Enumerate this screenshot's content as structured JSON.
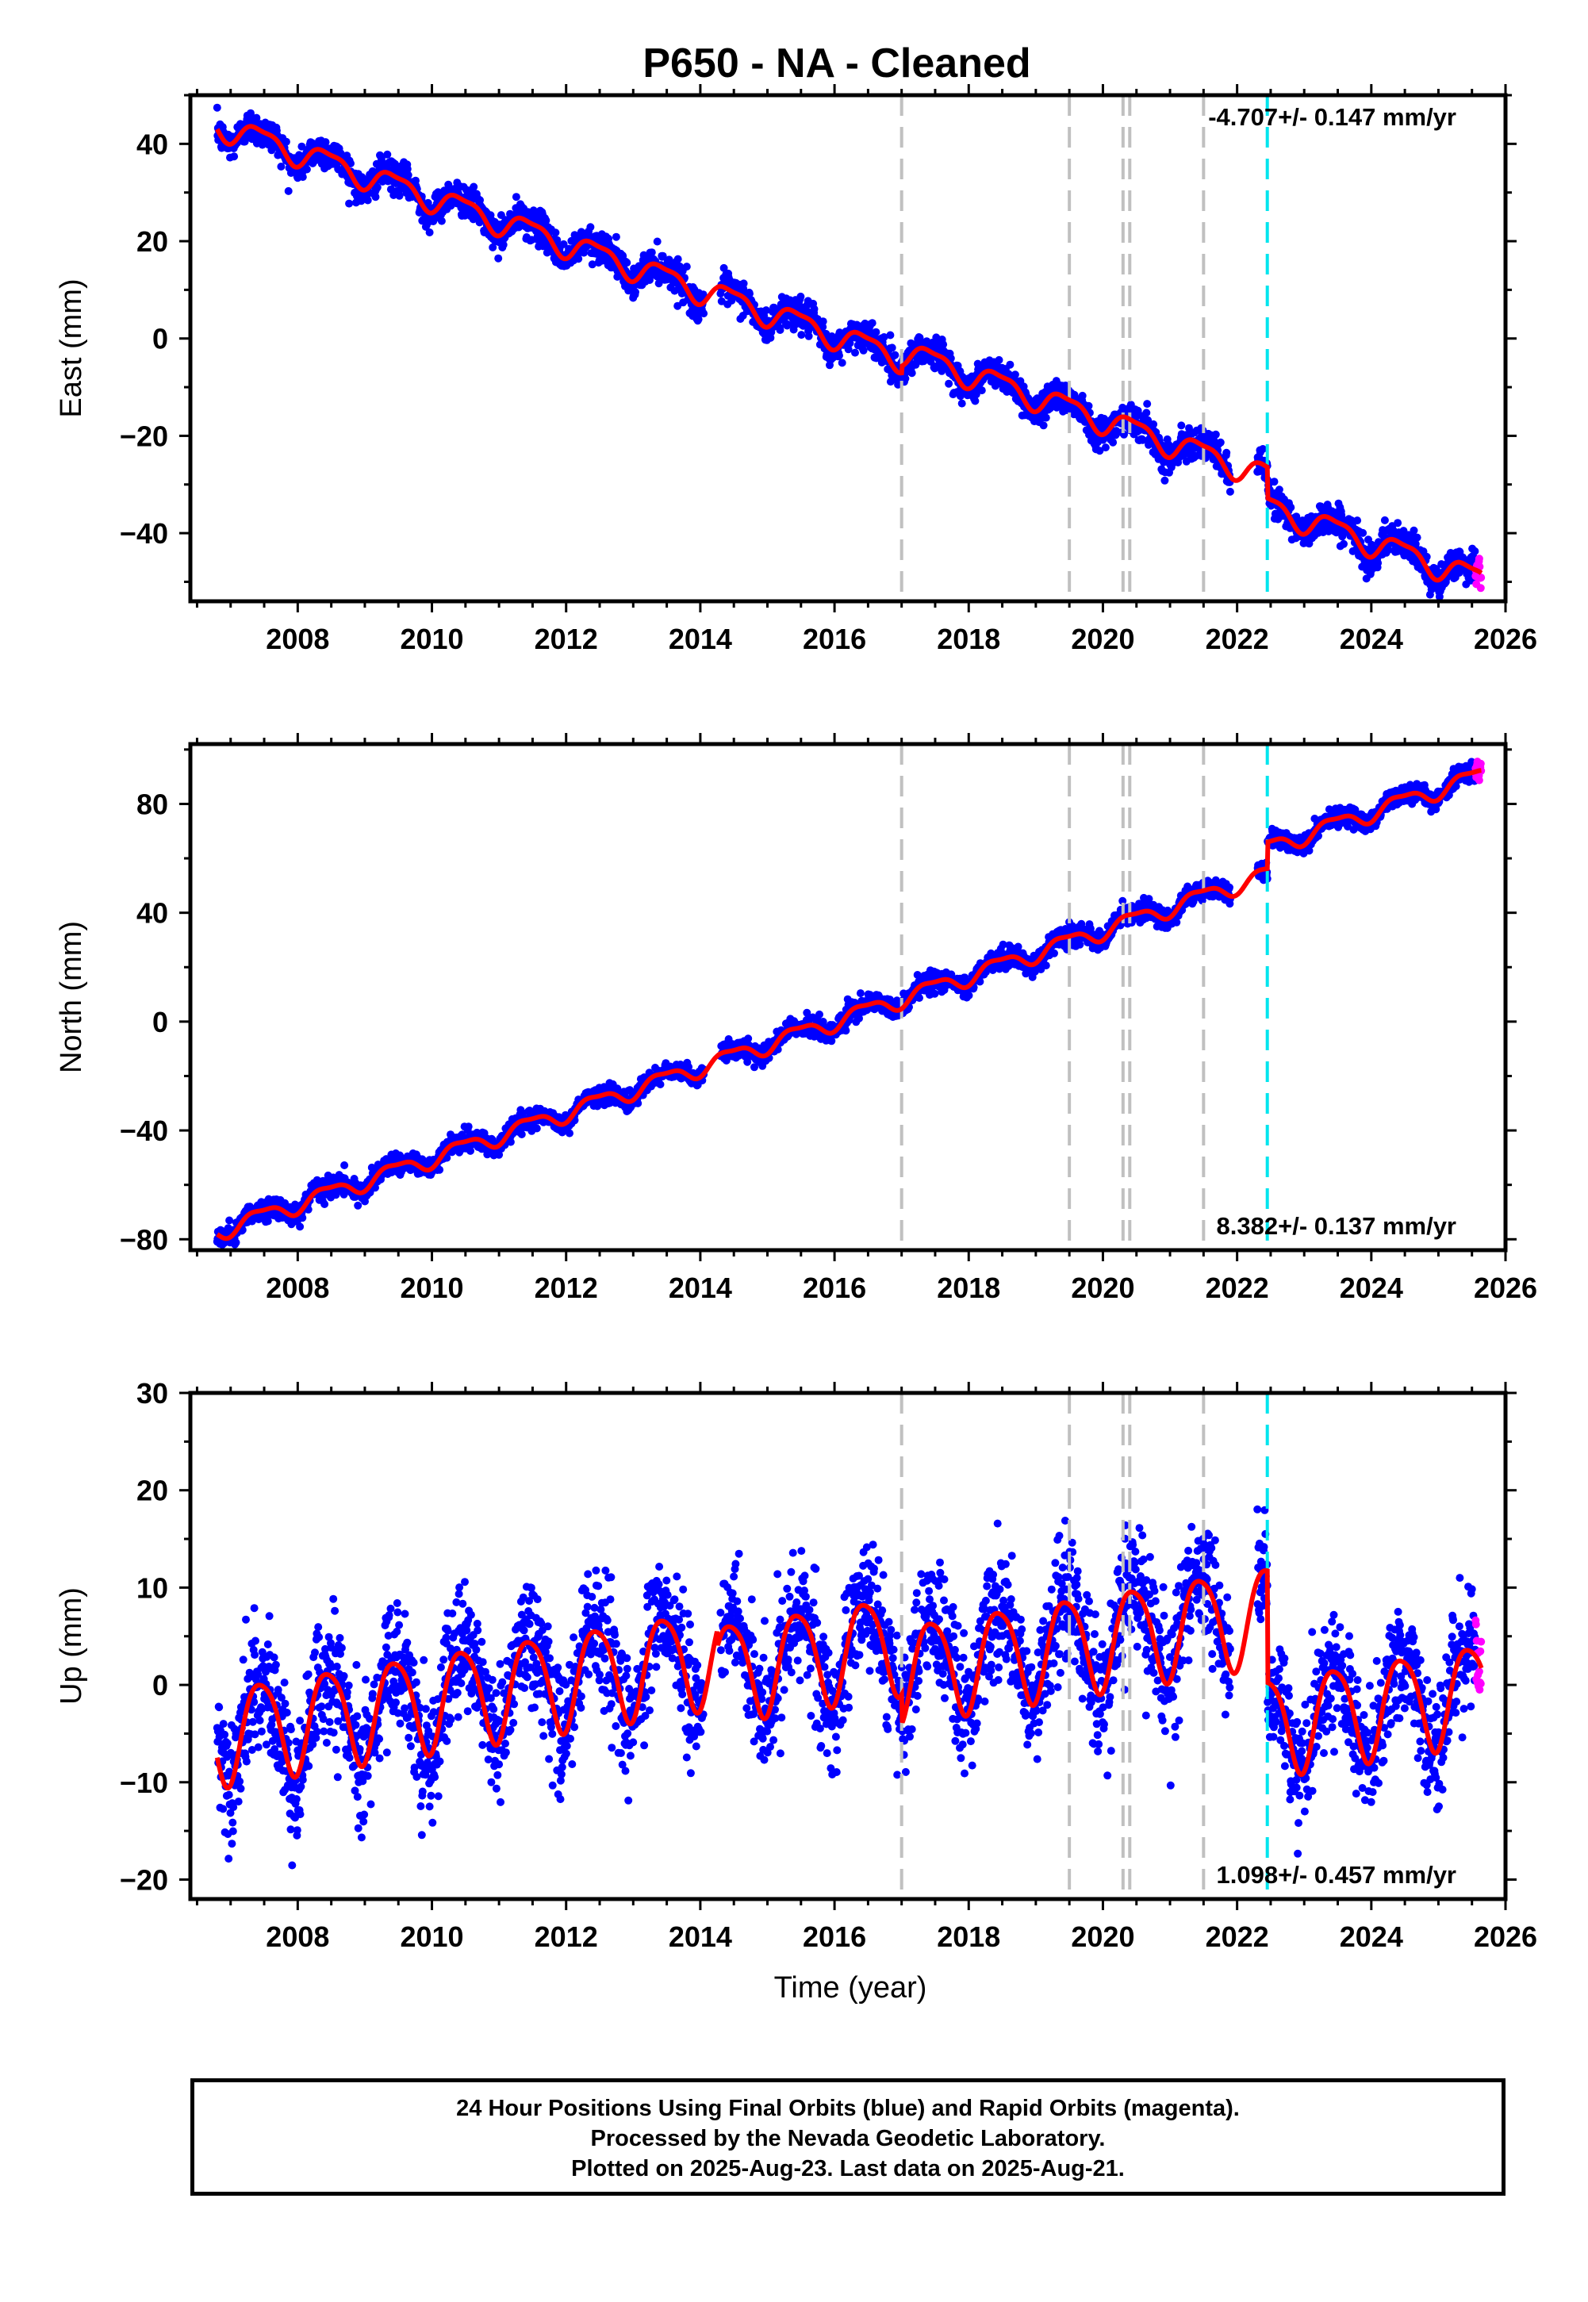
{
  "figure": {
    "title": "P650  - NA - Cleaned",
    "x_axis_label": "Time (year)",
    "footer_lines": [
      "24 Hour Positions Using Final Orbits (blue) and Rapid Orbits (magenta).",
      "Processed by the Nevada Geodetic Laboratory.",
      "Plotted on 2025-Aug-23. Last data on 2025-Aug-21."
    ],
    "colors": {
      "final_orbits": "#0000ff",
      "rapid_orbits": "#ff00ff",
      "model_fit": "#ff0000",
      "equipment_change_lines": "#c0c0c0",
      "earthquake_line": "#00e5ee"
    }
  },
  "chart_data": [
    {
      "type": "scatter",
      "component": "East",
      "ylabel": "East (mm)",
      "xlabel": "",
      "xlim": [
        2006.4,
        2026.0
      ],
      "ylim": [
        -54,
        50
      ],
      "xticks": [
        2008,
        2010,
        2012,
        2014,
        2016,
        2018,
        2020,
        2022,
        2024,
        2026
      ],
      "yticks": [
        -40,
        -20,
        0,
        20,
        40
      ],
      "rate_label": "-4.707+/- 0.147 mm/yr",
      "rate_mm_per_yr": -4.707,
      "rate_sigma": 0.147,
      "rate_position": "top-right",
      "data_start": 2006.8,
      "data_end": 2025.64,
      "rapid_start": 2025.55,
      "equipment_change_years": [
        2017.0,
        2019.5,
        2020.3,
        2020.4,
        2021.5
      ],
      "earthquake_years": [
        2022.45
      ],
      "model": {
        "offsets_mm": [
          {
            "year": 2006.8,
            "value": 44.0
          },
          {
            "year": 2014.25,
            "value": 9.0
          },
          {
            "year": 2017.0,
            "value": -2.5
          },
          {
            "year": 2022.45,
            "value": -34.5
          }
        ],
        "annual_amplitude_mm": 2.5,
        "semiannual_amplitude_mm": 0.8,
        "scatter_sigma_mm": 1.6
      }
    },
    {
      "type": "scatter",
      "component": "North",
      "ylabel": "North (mm)",
      "xlabel": "",
      "xlim": [
        2006.4,
        2026.0
      ],
      "ylim": [
        -84,
        102
      ],
      "xticks": [
        2008,
        2010,
        2012,
        2014,
        2016,
        2018,
        2020,
        2022,
        2024,
        2026
      ],
      "yticks": [
        -80,
        -40,
        0,
        40,
        80
      ],
      "rate_label": "8.382+/- 0.137 mm/yr",
      "rate_mm_per_yr": 8.382,
      "rate_sigma": 0.137,
      "rate_position": "bottom-right",
      "data_start": 2006.8,
      "data_end": 2025.64,
      "rapid_start": 2025.55,
      "equipment_change_years": [
        2017.0,
        2019.5,
        2020.3,
        2020.4,
        2021.5
      ],
      "earthquake_years": [
        2022.45
      ],
      "model": {
        "offsets_mm": [
          {
            "year": 2006.8,
            "value": -77.0
          },
          {
            "year": 2022.45,
            "value": 64.0
          }
        ],
        "annual_amplitude_mm": 3.0,
        "semiannual_amplitude_mm": 1.0,
        "scatter_sigma_mm": 1.8
      }
    },
    {
      "type": "scatter",
      "component": "Up",
      "ylabel": "Up (mm)",
      "xlabel": "Time (year)",
      "xlim": [
        2006.4,
        2026.0
      ],
      "ylim": [
        -22,
        30
      ],
      "xticks": [
        2008,
        2010,
        2012,
        2014,
        2016,
        2018,
        2020,
        2022,
        2024,
        2026
      ],
      "yticks": [
        -20,
        -10,
        0,
        10,
        20,
        30
      ],
      "rate_label": "1.098+/- 0.457 mm/yr",
      "rate_mm_per_yr": 1.098,
      "rate_sigma": 0.457,
      "rate_position": "bottom-right",
      "data_start": 2006.8,
      "data_end": 2025.64,
      "rapid_start": 2025.55,
      "equipment_change_years": [
        2017.0,
        2019.5,
        2020.3,
        2020.4,
        2021.5
      ],
      "earthquake_years": [
        2022.45
      ],
      "model": {
        "offsets_mm": [
          {
            "year": 2006.8,
            "value": -5.0
          },
          {
            "year": 2014.25,
            "value": 1.5
          },
          {
            "year": 2017.0,
            "value": 1.5
          },
          {
            "year": 2022.45,
            "value": -4.0
          }
        ],
        "annual_amplitude_mm": 5.0,
        "semiannual_amplitude_mm": 0.8,
        "scatter_sigma_mm": 3.2
      }
    }
  ]
}
